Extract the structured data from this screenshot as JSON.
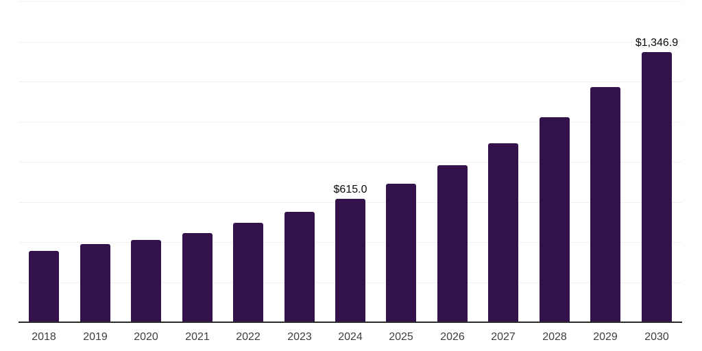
{
  "chart_style": {
    "background_color": "#ffffff",
    "bar_color": "#33114a",
    "axis_line_color": "#2b2b2b",
    "gridline_color": "#f2f2f2",
    "x_label_color": "#3d3d3d",
    "value_label_color": "#0a0a0a"
  },
  "chart_data": {
    "type": "bar",
    "title": "",
    "xlabel": "",
    "ylabel": "",
    "categories": [
      "2018",
      "2019",
      "2020",
      "2021",
      "2022",
      "2023",
      "2024",
      "2025",
      "2026",
      "2027",
      "2028",
      "2029",
      "2030"
    ],
    "values": [
      356,
      390,
      410,
      444,
      496,
      550,
      615.0,
      691,
      783,
      892,
      1022,
      1173,
      1346.9
    ],
    "data_labels": [
      "",
      "",
      "",
      "",
      "",
      "",
      "$615.0",
      "",
      "",
      "",
      "",
      "",
      "$1,346.9"
    ],
    "ylim": [
      0,
      1600
    ],
    "gridline_step": 200,
    "grid": "on",
    "y_axis_tick_labels_visible": false,
    "legend_position": "none"
  }
}
